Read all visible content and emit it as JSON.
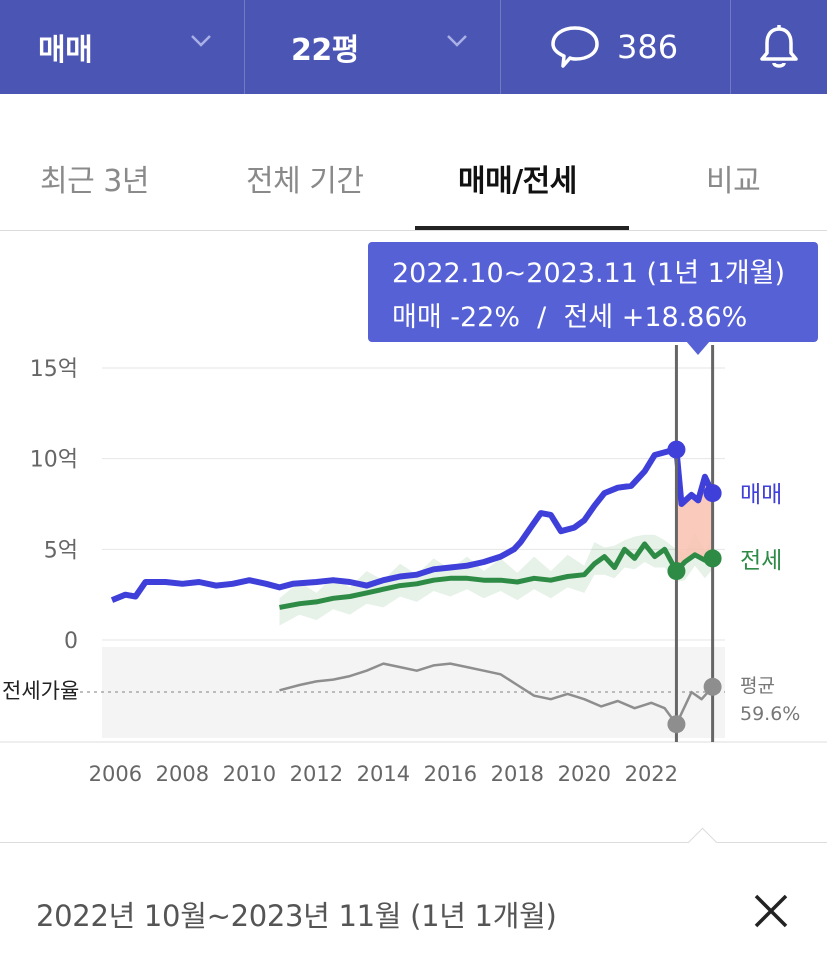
{
  "header": {
    "trade_type": "매매",
    "size": "22평",
    "comment_count": "386",
    "icons": {
      "dropdown": "chevron-down-icon",
      "comment": "speech-bubble-icon",
      "alarm": "bell-icon"
    }
  },
  "tabs": [
    {
      "label": "최근 3년",
      "active": false
    },
    {
      "label": "전체 기간",
      "active": false
    },
    {
      "label": "매매/전세",
      "active": true
    },
    {
      "label": "비교",
      "active": false
    }
  ],
  "tooltip": {
    "period": "2022.10~2023.11 (1년 1개월)",
    "change": "매매 -22%  /  전세 +18.86%"
  },
  "bottom": {
    "range_text": "2022년 10월~2023년 11월 (1년 1개월)",
    "close_icon": "close-icon"
  },
  "colors": {
    "header_bg": "#4b55b4",
    "tooltip_bg": "#5661d6",
    "sale_series": "#3f3fd9",
    "jeonse_series": "#2e8b45",
    "ratio_series": "#8e8e8e",
    "selection_fill": "#f9c2b0"
  },
  "chart_data": {
    "type": "line",
    "y_ticks": [
      "15억",
      "10억",
      "5억",
      "0"
    ],
    "ylim": [
      0,
      15
    ],
    "y_unit": "억",
    "xlim": [
      2005.6,
      2024.2
    ],
    "x_ticks": [
      "2006",
      "2008",
      "2010",
      "2012",
      "2014",
      "2016",
      "2018",
      "2020",
      "2022"
    ],
    "grid": true,
    "selection": {
      "start": 2022.75,
      "end": 2023.83
    },
    "series": [
      {
        "name": "매매",
        "color": "#3f3fd9",
        "points": [
          [
            2005.9,
            2.2
          ],
          [
            2006.3,
            2.5
          ],
          [
            2006.6,
            2.4
          ],
          [
            2006.9,
            3.2
          ],
          [
            2007.5,
            3.2
          ],
          [
            2008.0,
            3.1
          ],
          [
            2008.5,
            3.2
          ],
          [
            2009.0,
            3.0
          ],
          [
            2009.5,
            3.1
          ],
          [
            2010.0,
            3.3
          ],
          [
            2010.5,
            3.1
          ],
          [
            2010.9,
            2.9
          ],
          [
            2011.3,
            3.1
          ],
          [
            2012.0,
            3.2
          ],
          [
            2012.5,
            3.3
          ],
          [
            2013.0,
            3.2
          ],
          [
            2013.5,
            3.0
          ],
          [
            2014.0,
            3.3
          ],
          [
            2014.5,
            3.5
          ],
          [
            2015.0,
            3.6
          ],
          [
            2015.5,
            3.9
          ],
          [
            2016.0,
            4.0
          ],
          [
            2016.5,
            4.1
          ],
          [
            2017.0,
            4.3
          ],
          [
            2017.5,
            4.6
          ],
          [
            2017.9,
            5.0
          ],
          [
            2018.1,
            5.4
          ],
          [
            2018.4,
            6.2
          ],
          [
            2018.7,
            7.0
          ],
          [
            2019.0,
            6.9
          ],
          [
            2019.3,
            6.0
          ],
          [
            2019.7,
            6.2
          ],
          [
            2020.0,
            6.6
          ],
          [
            2020.3,
            7.4
          ],
          [
            2020.6,
            8.1
          ],
          [
            2021.0,
            8.4
          ],
          [
            2021.4,
            8.5
          ],
          [
            2021.8,
            9.3
          ],
          [
            2022.1,
            10.2
          ],
          [
            2022.5,
            10.4
          ],
          [
            2022.75,
            10.5
          ],
          [
            2022.9,
            7.5
          ],
          [
            2023.2,
            8.0
          ],
          [
            2023.4,
            7.7
          ],
          [
            2023.6,
            9.0
          ],
          [
            2023.83,
            8.1
          ]
        ]
      },
      {
        "name": "전세",
        "color": "#2e8b45",
        "points": [
          [
            2010.9,
            1.8
          ],
          [
            2011.5,
            2.0
          ],
          [
            2012.0,
            2.1
          ],
          [
            2012.5,
            2.3
          ],
          [
            2013.0,
            2.4
          ],
          [
            2013.5,
            2.6
          ],
          [
            2014.0,
            2.8
          ],
          [
            2014.5,
            3.0
          ],
          [
            2015.0,
            3.1
          ],
          [
            2015.5,
            3.3
          ],
          [
            2016.0,
            3.4
          ],
          [
            2016.5,
            3.4
          ],
          [
            2017.0,
            3.3
          ],
          [
            2017.5,
            3.3
          ],
          [
            2018.0,
            3.2
          ],
          [
            2018.5,
            3.4
          ],
          [
            2019.0,
            3.3
          ],
          [
            2019.5,
            3.5
          ],
          [
            2020.0,
            3.6
          ],
          [
            2020.3,
            4.2
          ],
          [
            2020.6,
            4.6
          ],
          [
            2020.9,
            4.0
          ],
          [
            2021.2,
            5.0
          ],
          [
            2021.5,
            4.5
          ],
          [
            2021.8,
            5.3
          ],
          [
            2022.1,
            4.6
          ],
          [
            2022.4,
            5.0
          ],
          [
            2022.75,
            3.8
          ],
          [
            2023.0,
            4.3
          ],
          [
            2023.3,
            4.7
          ],
          [
            2023.6,
            4.4
          ],
          [
            2023.83,
            4.5
          ]
        ]
      }
    ],
    "ratio": {
      "label": "전세가율",
      "average_label": "평균",
      "average_value": "59.6%",
      "points": [
        [
          2010.9,
          55
        ],
        [
          2011.5,
          58
        ],
        [
          2012.0,
          60
        ],
        [
          2012.5,
          61
        ],
        [
          2013.0,
          63
        ],
        [
          2013.5,
          66
        ],
        [
          2014.0,
          70
        ],
        [
          2014.5,
          68
        ],
        [
          2015.0,
          66
        ],
        [
          2015.5,
          69
        ],
        [
          2016.0,
          70
        ],
        [
          2016.5,
          68
        ],
        [
          2017.0,
          66
        ],
        [
          2017.5,
          64
        ],
        [
          2018.0,
          58
        ],
        [
          2018.5,
          52
        ],
        [
          2019.0,
          50
        ],
        [
          2019.5,
          53
        ],
        [
          2020.0,
          50
        ],
        [
          2020.5,
          46
        ],
        [
          2021.0,
          49
        ],
        [
          2021.5,
          45
        ],
        [
          2022.0,
          48
        ],
        [
          2022.4,
          45
        ],
        [
          2022.75,
          36
        ],
        [
          2023.2,
          54
        ],
        [
          2023.5,
          50
        ],
        [
          2023.83,
          57
        ]
      ]
    }
  }
}
